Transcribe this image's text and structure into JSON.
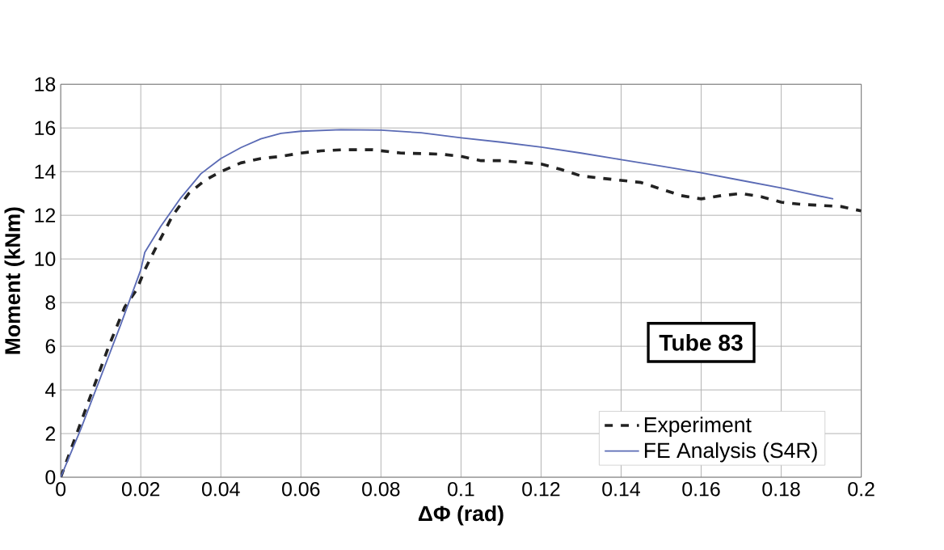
{
  "chart_data": {
    "type": "line",
    "xlabel": "ΔΦ (rad)",
    "ylabel": "Moment (kNm)",
    "xlim": [
      0,
      0.2
    ],
    "ylim": [
      0,
      18
    ],
    "xticks": [
      0,
      0.02,
      0.04,
      0.06,
      0.08,
      0.1,
      0.12,
      0.14,
      0.16,
      0.18,
      0.2
    ],
    "yticks": [
      0,
      2,
      4,
      6,
      8,
      10,
      12,
      14,
      16,
      18
    ],
    "grid": true,
    "legend": "bottom right",
    "marker": "none",
    "annotations": [
      "Tube 83"
    ],
    "series": [
      {
        "name": "Experiment",
        "color": "#222222",
        "line_style": "dashed",
        "x": [
          0,
          0.004,
          0.008,
          0.012,
          0.016,
          0.019,
          0.021,
          0.024,
          0.028,
          0.032,
          0.036,
          0.04,
          0.045,
          0.05,
          0.055,
          0.06,
          0.065,
          0.07,
          0.078,
          0.085,
          0.095,
          0.1,
          0.105,
          0.11,
          0.12,
          0.125,
          0.13,
          0.135,
          0.14,
          0.145,
          0.15,
          0.155,
          0.16,
          0.165,
          0.17,
          0.175,
          0.18,
          0.185,
          0.19,
          0.195,
          0.2
        ],
        "values": [
          0,
          2,
          4,
          6,
          7.8,
          8.6,
          9.5,
          10.6,
          12,
          13,
          13.6,
          14,
          14.4,
          14.6,
          14.7,
          14.85,
          14.95,
          15,
          15,
          14.85,
          14.8,
          14.7,
          14.5,
          14.5,
          14.35,
          14.1,
          13.8,
          13.7,
          13.6,
          13.5,
          13.2,
          12.9,
          12.75,
          12.9,
          13,
          12.85,
          12.6,
          12.5,
          12.45,
          12.4,
          12.2
        ]
      },
      {
        "name": "FE Analysis (S4R)",
        "color": "#5b6bb5",
        "line_style": "solid",
        "x": [
          0,
          0.005,
          0.01,
          0.015,
          0.02,
          0.021,
          0.025,
          0.03,
          0.035,
          0.04,
          0.045,
          0.05,
          0.055,
          0.06,
          0.07,
          0.08,
          0.09,
          0.1,
          0.11,
          0.12,
          0.13,
          0.14,
          0.15,
          0.16,
          0.17,
          0.18,
          0.193
        ],
        "values": [
          0,
          2.2,
          4.6,
          7,
          9.5,
          10.3,
          11.5,
          12.8,
          13.9,
          14.6,
          15.1,
          15.5,
          15.75,
          15.85,
          15.92,
          15.9,
          15.78,
          15.55,
          15.35,
          15.12,
          14.85,
          14.55,
          14.25,
          13.95,
          13.6,
          13.25,
          12.75
        ]
      }
    ]
  }
}
